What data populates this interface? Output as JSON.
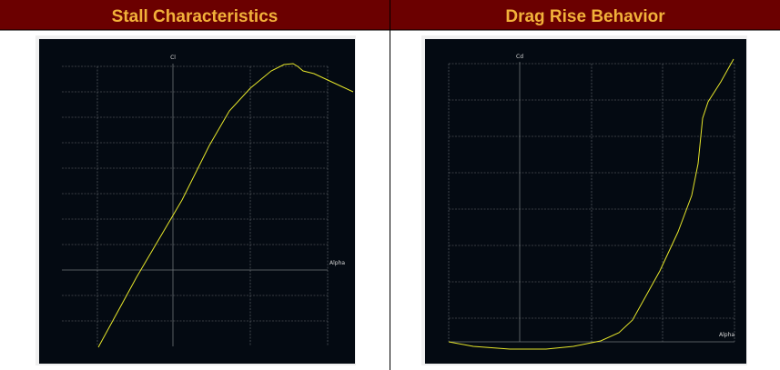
{
  "panels": [
    {
      "title": "Stall Characteristics",
      "y_label": "Cl",
      "x_label": "Alpha"
    },
    {
      "title": "Drag Rise Behavior",
      "y_label": "Cd",
      "x_label": "Alpha"
    }
  ]
}
